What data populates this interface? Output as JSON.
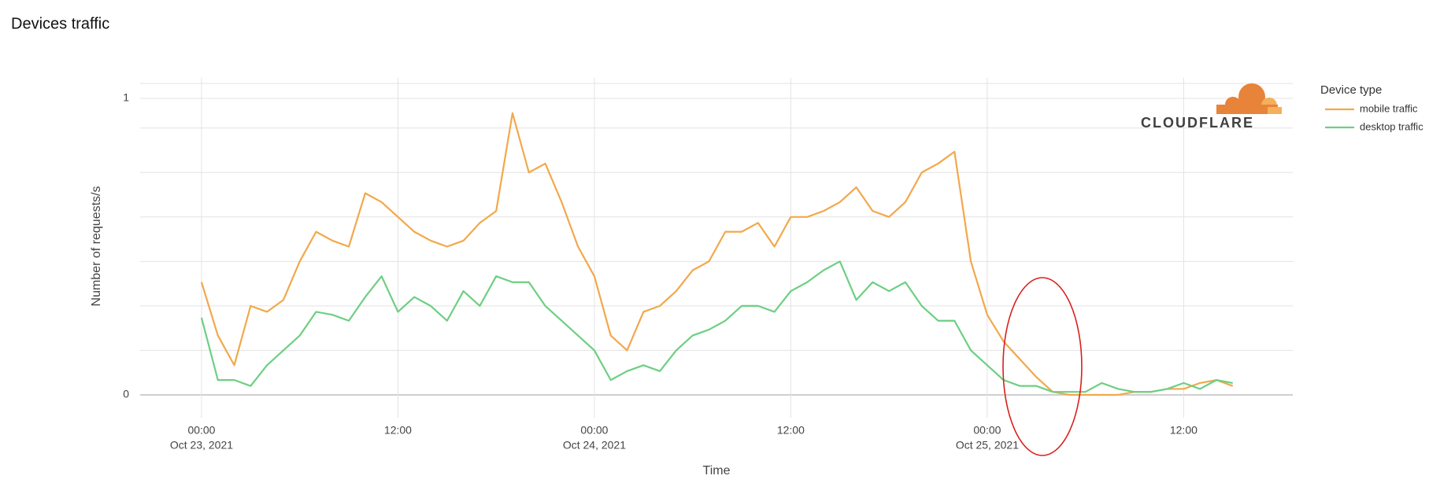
{
  "chart_data": {
    "type": "line",
    "title": "Devices traffic",
    "x_label": "Time",
    "y_label": "Number of requests/s",
    "legend_title": "Device type",
    "legend": "right",
    "logo": "CLOUDFLARE",
    "grid": true,
    "x": [
      "2021-10-23T00:00",
      "2021-10-23T01:00",
      "2021-10-23T02:00",
      "2021-10-23T03:00",
      "2021-10-23T04:00",
      "2021-10-23T05:00",
      "2021-10-23T06:00",
      "2021-10-23T07:00",
      "2021-10-23T08:00",
      "2021-10-23T09:00",
      "2021-10-23T10:00",
      "2021-10-23T11:00",
      "2021-10-23T12:00",
      "2021-10-23T13:00",
      "2021-10-23T14:00",
      "2021-10-23T15:00",
      "2021-10-23T16:00",
      "2021-10-23T17:00",
      "2021-10-23T18:00",
      "2021-10-23T19:00",
      "2021-10-23T20:00",
      "2021-10-23T21:00",
      "2021-10-23T22:00",
      "2021-10-23T23:00",
      "2021-10-24T00:00",
      "2021-10-24T01:00",
      "2021-10-24T02:00",
      "2021-10-24T03:00",
      "2021-10-24T04:00",
      "2021-10-24T05:00",
      "2021-10-24T06:00",
      "2021-10-24T07:00",
      "2021-10-24T08:00",
      "2021-10-24T09:00",
      "2021-10-24T10:00",
      "2021-10-24T11:00",
      "2021-10-24T12:00",
      "2021-10-24T13:00",
      "2021-10-24T14:00",
      "2021-10-24T15:00",
      "2021-10-24T16:00",
      "2021-10-24T17:00",
      "2021-10-24T18:00",
      "2021-10-24T19:00",
      "2021-10-24T20:00",
      "2021-10-24T21:00",
      "2021-10-24T22:00",
      "2021-10-24T23:00",
      "2021-10-25T00:00",
      "2021-10-25T01:00",
      "2021-10-25T02:00",
      "2021-10-25T03:00",
      "2021-10-25T04:00",
      "2021-10-25T05:00",
      "2021-10-25T06:00",
      "2021-10-25T07:00",
      "2021-10-25T08:00",
      "2021-10-25T09:00",
      "2021-10-25T10:00",
      "2021-10-25T11:00",
      "2021-10-25T12:00",
      "2021-10-25T13:00",
      "2021-10-25T14:00",
      "2021-10-25T15:00"
    ],
    "series": [
      {
        "name": "mobile traffic",
        "color": "#f2a84b",
        "values": [
          0.38,
          0.2,
          0.1,
          0.3,
          0.28,
          0.32,
          0.45,
          0.55,
          0.52,
          0.5,
          0.68,
          0.65,
          0.6,
          0.55,
          0.52,
          0.5,
          0.52,
          0.58,
          0.62,
          0.95,
          0.75,
          0.78,
          0.65,
          0.5,
          0.4,
          0.2,
          0.15,
          0.28,
          0.3,
          0.35,
          0.42,
          0.45,
          0.55,
          0.55,
          0.58,
          0.5,
          0.6,
          0.6,
          0.62,
          0.65,
          0.7,
          0.62,
          0.6,
          0.65,
          0.75,
          0.78,
          0.82,
          0.45,
          0.27,
          0.18,
          0.12,
          0.06,
          0.01,
          0,
          0,
          0,
          0,
          0.01,
          0.01,
          0.02,
          0.02,
          0.04,
          0.05,
          0.03
        ]
      },
      {
        "name": "desktop traffic",
        "color": "#6dcf83",
        "values": [
          0.26,
          0.05,
          0.05,
          0.03,
          0.1,
          0.15,
          0.2,
          0.28,
          0.27,
          0.25,
          0.33,
          0.4,
          0.28,
          0.33,
          0.3,
          0.25,
          0.35,
          0.3,
          0.4,
          0.38,
          0.38,
          0.3,
          0.25,
          0.2,
          0.15,
          0.05,
          0.08,
          0.1,
          0.08,
          0.15,
          0.2,
          0.22,
          0.25,
          0.3,
          0.3,
          0.28,
          0.35,
          0.38,
          0.42,
          0.45,
          0.32,
          0.38,
          0.35,
          0.38,
          0.3,
          0.25,
          0.25,
          0.15,
          0.1,
          0.05,
          0.03,
          0.03,
          0.01,
          0.01,
          0.01,
          0.04,
          0.02,
          0.01,
          0.01,
          0.02,
          0.04,
          0.02,
          0.05,
          0.04
        ]
      }
    ],
    "xlim": [
      "2021-10-22T20:15",
      "2021-10-25T18:40"
    ],
    "xticks": [
      {
        "value": "2021-10-23T00:00",
        "label": "00:00",
        "date": "Oct 23, 2021"
      },
      {
        "value": "2021-10-23T12:00",
        "label": "12:00"
      },
      {
        "value": "2021-10-24T00:00",
        "label": "00:00",
        "date": "Oct 24, 2021"
      },
      {
        "value": "2021-10-24T12:00",
        "label": "12:00"
      },
      {
        "value": "2021-10-25T00:00",
        "label": "00:00",
        "date": "Oct 25, 2021"
      },
      {
        "value": "2021-10-25T12:00",
        "label": "12:00"
      }
    ],
    "ylim": [
      -0.077,
      1.069
    ],
    "yticks": [
      0,
      1
    ],
    "y_minor_grid": [
      0.15,
      0.3,
      0.45,
      0.6,
      0.75,
      0.9,
      1.05
    ]
  }
}
